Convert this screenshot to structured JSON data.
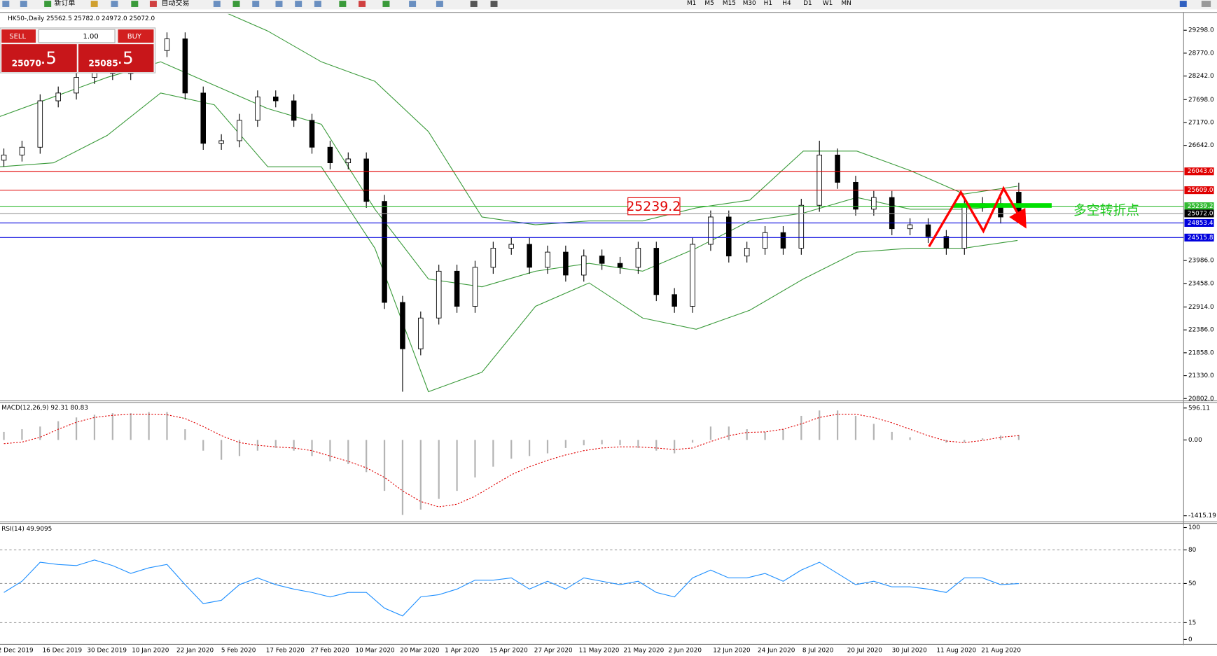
{
  "toolbar": {
    "new_order": "新订单",
    "auto_trading": "自动交易",
    "timeframes": [
      "M1",
      "M5",
      "M15",
      "M30",
      "H1",
      "H4",
      "D1",
      "W1",
      "MN"
    ]
  },
  "trade_panel": {
    "sell": "SELL",
    "buy": "BUY",
    "lots": "1.00",
    "bid": "25070",
    "bid_pip": ".5",
    "ask": "25085",
    "ask_pip": ".5"
  },
  "time_labels": [
    "2 Dec 2019",
    "16 Dec 2019",
    "30 Dec 2019",
    "10 Jan 2020",
    "22 Jan 2020",
    "5 Feb 2020",
    "17 Feb 2020",
    "27 Feb 2020",
    "10 Mar 2020",
    "20 Mar 2020",
    "1 Apr 2020",
    "15 Apr 2020",
    "27 Apr 2020",
    "11 May 2020",
    "21 May 2020",
    "2 Jun 2020",
    "12 Jun 2020",
    "24 Jun 2020",
    "8 Jul 2020",
    "20 Jul 2020",
    "30 Jul 2020",
    "11 Aug 2020",
    "21 Aug 2020"
  ],
  "chart_data": [
    {
      "type": "candlestick",
      "title": "HK50-,Daily 25562.5 25782.0 24972.0 25072.0",
      "open": [
        26300,
        26420,
        26600,
        27670,
        27850,
        28210,
        28480,
        28300,
        28920,
        28830,
        29100,
        27850,
        26690,
        26750,
        27220,
        27760,
        27670,
        27220,
        26600,
        26240,
        26330,
        25350,
        23020,
        21950,
        22660,
        23740,
        22930,
        23830,
        24270,
        24360,
        23830,
        24180,
        23650,
        24090,
        23920,
        23830,
        24270,
        23200,
        22930,
        24360,
        24990,
        24090,
        24270,
        24630,
        24270,
        25260,
        26420,
        25790,
        25170,
        25440,
        24720,
        24810,
        24540,
        24270,
        25260,
        25300,
        25562.5
      ],
      "high": [
        26570,
        26750,
        27820,
        28000,
        28360,
        28630,
        28630,
        29070,
        29070,
        29250,
        29250,
        28000,
        26900,
        27370,
        27910,
        27910,
        27820,
        27370,
        26750,
        26480,
        26480,
        25500,
        23170,
        22810,
        23890,
        23890,
        23980,
        24420,
        24510,
        24510,
        24330,
        24330,
        24240,
        24240,
        24070,
        24420,
        24420,
        23350,
        24510,
        25140,
        25140,
        24420,
        24780,
        24780,
        25410,
        26750,
        26570,
        25940,
        25590,
        25590,
        24960,
        24960,
        24690,
        25410,
        25450,
        25450,
        25782
      ],
      "low": [
        26150,
        26270,
        26450,
        27520,
        27700,
        28060,
        28150,
        28150,
        28680,
        28680,
        27700,
        26540,
        26540,
        26600,
        27070,
        27520,
        27070,
        26450,
        26090,
        26090,
        25200,
        22870,
        20960,
        21800,
        22510,
        22780,
        22780,
        23680,
        24120,
        23680,
        23680,
        23500,
        23500,
        23770,
        23680,
        23680,
        23050,
        22780,
        22780,
        24210,
        23940,
        23940,
        24120,
        24120,
        24120,
        25110,
        25640,
        25020,
        25020,
        24570,
        24570,
        24390,
        24120,
        24120,
        25110,
        24840,
        24972
      ],
      "close": [
        26420,
        26600,
        27670,
        27850,
        28210,
        28480,
        28300,
        28920,
        28830,
        29100,
        27850,
        26690,
        26750,
        27220,
        27760,
        27670,
        27220,
        26600,
        26240,
        26330,
        25350,
        23020,
        21950,
        22660,
        23740,
        22930,
        23830,
        24270,
        24360,
        23830,
        24180,
        23650,
        24090,
        23920,
        23830,
        24270,
        23200,
        22930,
        24360,
        24990,
        24090,
        24270,
        24630,
        24270,
        25260,
        26420,
        25790,
        25170,
        25440,
        24720,
        24810,
        24540,
        24270,
        25260,
        25300,
        24990,
        25072
      ],
      "bollinger_upper": [
        29820,
        30170,
        30350,
        30350,
        29820,
        29280,
        28570,
        28120,
        26960,
        24990,
        24810,
        24900,
        24900,
        25200,
        25380,
        26510,
        26510,
        26060,
        25520,
        25700
      ],
      "bollinger_middle": [
        27310,
        27760,
        28210,
        28570,
        28030,
        27490,
        27130,
        25170,
        23560,
        23380,
        23740,
        23920,
        23740,
        24270,
        24900,
        25080,
        25440,
        25170,
        25170,
        25260
      ],
      "bollinger_lower": [
        26150,
        26240,
        26870,
        27850,
        27580,
        26150,
        26150,
        24270,
        20960,
        21410,
        22930,
        23470,
        22660,
        22400,
        22840,
        23560,
        24180,
        24270,
        24270,
        24450
      ],
      "band_color": "#3a9a3a",
      "levels": [
        {
          "value": 26043,
          "label": "26043.0",
          "color": "#e00000"
        },
        {
          "value": 25609,
          "label": "25609.0",
          "color": "#e00000"
        },
        {
          "value": 25239.2,
          "label": "25239.2",
          "color": "#33bb33"
        },
        {
          "value": 25072,
          "label": "25072.0",
          "color": "#999999"
        },
        {
          "value": 24853.4,
          "label": "24853.4",
          "color": "#0000dd"
        },
        {
          "value": 24515.8,
          "label": "24515.8",
          "color": "#0000dd"
        }
      ],
      "annotation": "25239.2",
      "note": "多空转折点",
      "ylim": [
        20766,
        29674
      ],
      "yticks": [
        {
          "value": 29298,
          "label": "29298.0"
        },
        {
          "value": 28770,
          "label": "28770.0"
        },
        {
          "value": 28242,
          "label": "28242.0"
        },
        {
          "value": 27698,
          "label": "27698.0"
        },
        {
          "value": 27170,
          "label": "27170.0"
        },
        {
          "value": 26642,
          "label": "26642.0"
        },
        {
          "value": 23986,
          "label": "23986.0"
        },
        {
          "value": 23458,
          "label": "23458.0"
        },
        {
          "value": 22914,
          "label": "22914.0"
        },
        {
          "value": 22386,
          "label": "22386.0"
        },
        {
          "value": 21858,
          "label": "21858.0"
        },
        {
          "value": 21330,
          "label": "21330.0"
        },
        {
          "value": 20802,
          "label": "20802.0"
        }
      ]
    },
    {
      "type": "macd",
      "title": "MACD(12,26,9) 92.31 80.83",
      "histogram": [
        150,
        200,
        250,
        350,
        420,
        470,
        500,
        500,
        520,
        520,
        200,
        -200,
        -370,
        -300,
        -200,
        -150,
        -200,
        -300,
        -400,
        -450,
        -600,
        -950,
        -1400,
        -1300,
        -1100,
        -950,
        -700,
        -500,
        -350,
        -300,
        -250,
        -150,
        -100,
        -80,
        -100,
        -150,
        -200,
        -250,
        -50,
        250,
        250,
        200,
        150,
        200,
        450,
        550,
        550,
        450,
        300,
        150,
        50,
        0,
        -50,
        -50,
        30,
        80,
        92.31
      ],
      "signal": [
        -70,
        -40,
        50,
        200,
        330,
        420,
        460,
        480,
        480,
        470,
        400,
        250,
        80,
        -50,
        -100,
        -130,
        -150,
        -200,
        -300,
        -400,
        -520,
        -700,
        -950,
        -1150,
        -1250,
        -1200,
        -1050,
        -850,
        -650,
        -500,
        -380,
        -280,
        -200,
        -150,
        -130,
        -130,
        -150,
        -180,
        -150,
        -30,
        80,
        140,
        150,
        200,
        300,
        420,
        480,
        480,
        420,
        320,
        200,
        80,
        -20,
        -50,
        -10,
        50,
        80.83
      ],
      "histogram_color": "#b4b4b4",
      "signal_color": "#e00000",
      "ylim": [
        -1500,
        700
      ],
      "yticks": [
        596.11,
        {
          "value": 0,
          "label": "0.00"
        },
        -1415.19
      ]
    },
    {
      "type": "rsi",
      "title": "RSI(14) 49.9095",
      "values": [
        42,
        52,
        69,
        67,
        66,
        71,
        66,
        59,
        64,
        67,
        49,
        32,
        35,
        49,
        55,
        49,
        45,
        42,
        38,
        42,
        42,
        28,
        21,
        38,
        40,
        45,
        53,
        53,
        55,
        45,
        52,
        45,
        55,
        52,
        49,
        52,
        42,
        38,
        55,
        62,
        55,
        55,
        59,
        52,
        62,
        69,
        59,
        49,
        52,
        47,
        47,
        45,
        42,
        55,
        55,
        49,
        49.9095
      ],
      "color": "#1e8fff",
      "ylim": [
        -3,
        103
      ],
      "yticks": [
        100,
        80,
        50,
        15,
        0
      ],
      "dashed_levels": [
        15,
        50,
        80
      ]
    }
  ]
}
